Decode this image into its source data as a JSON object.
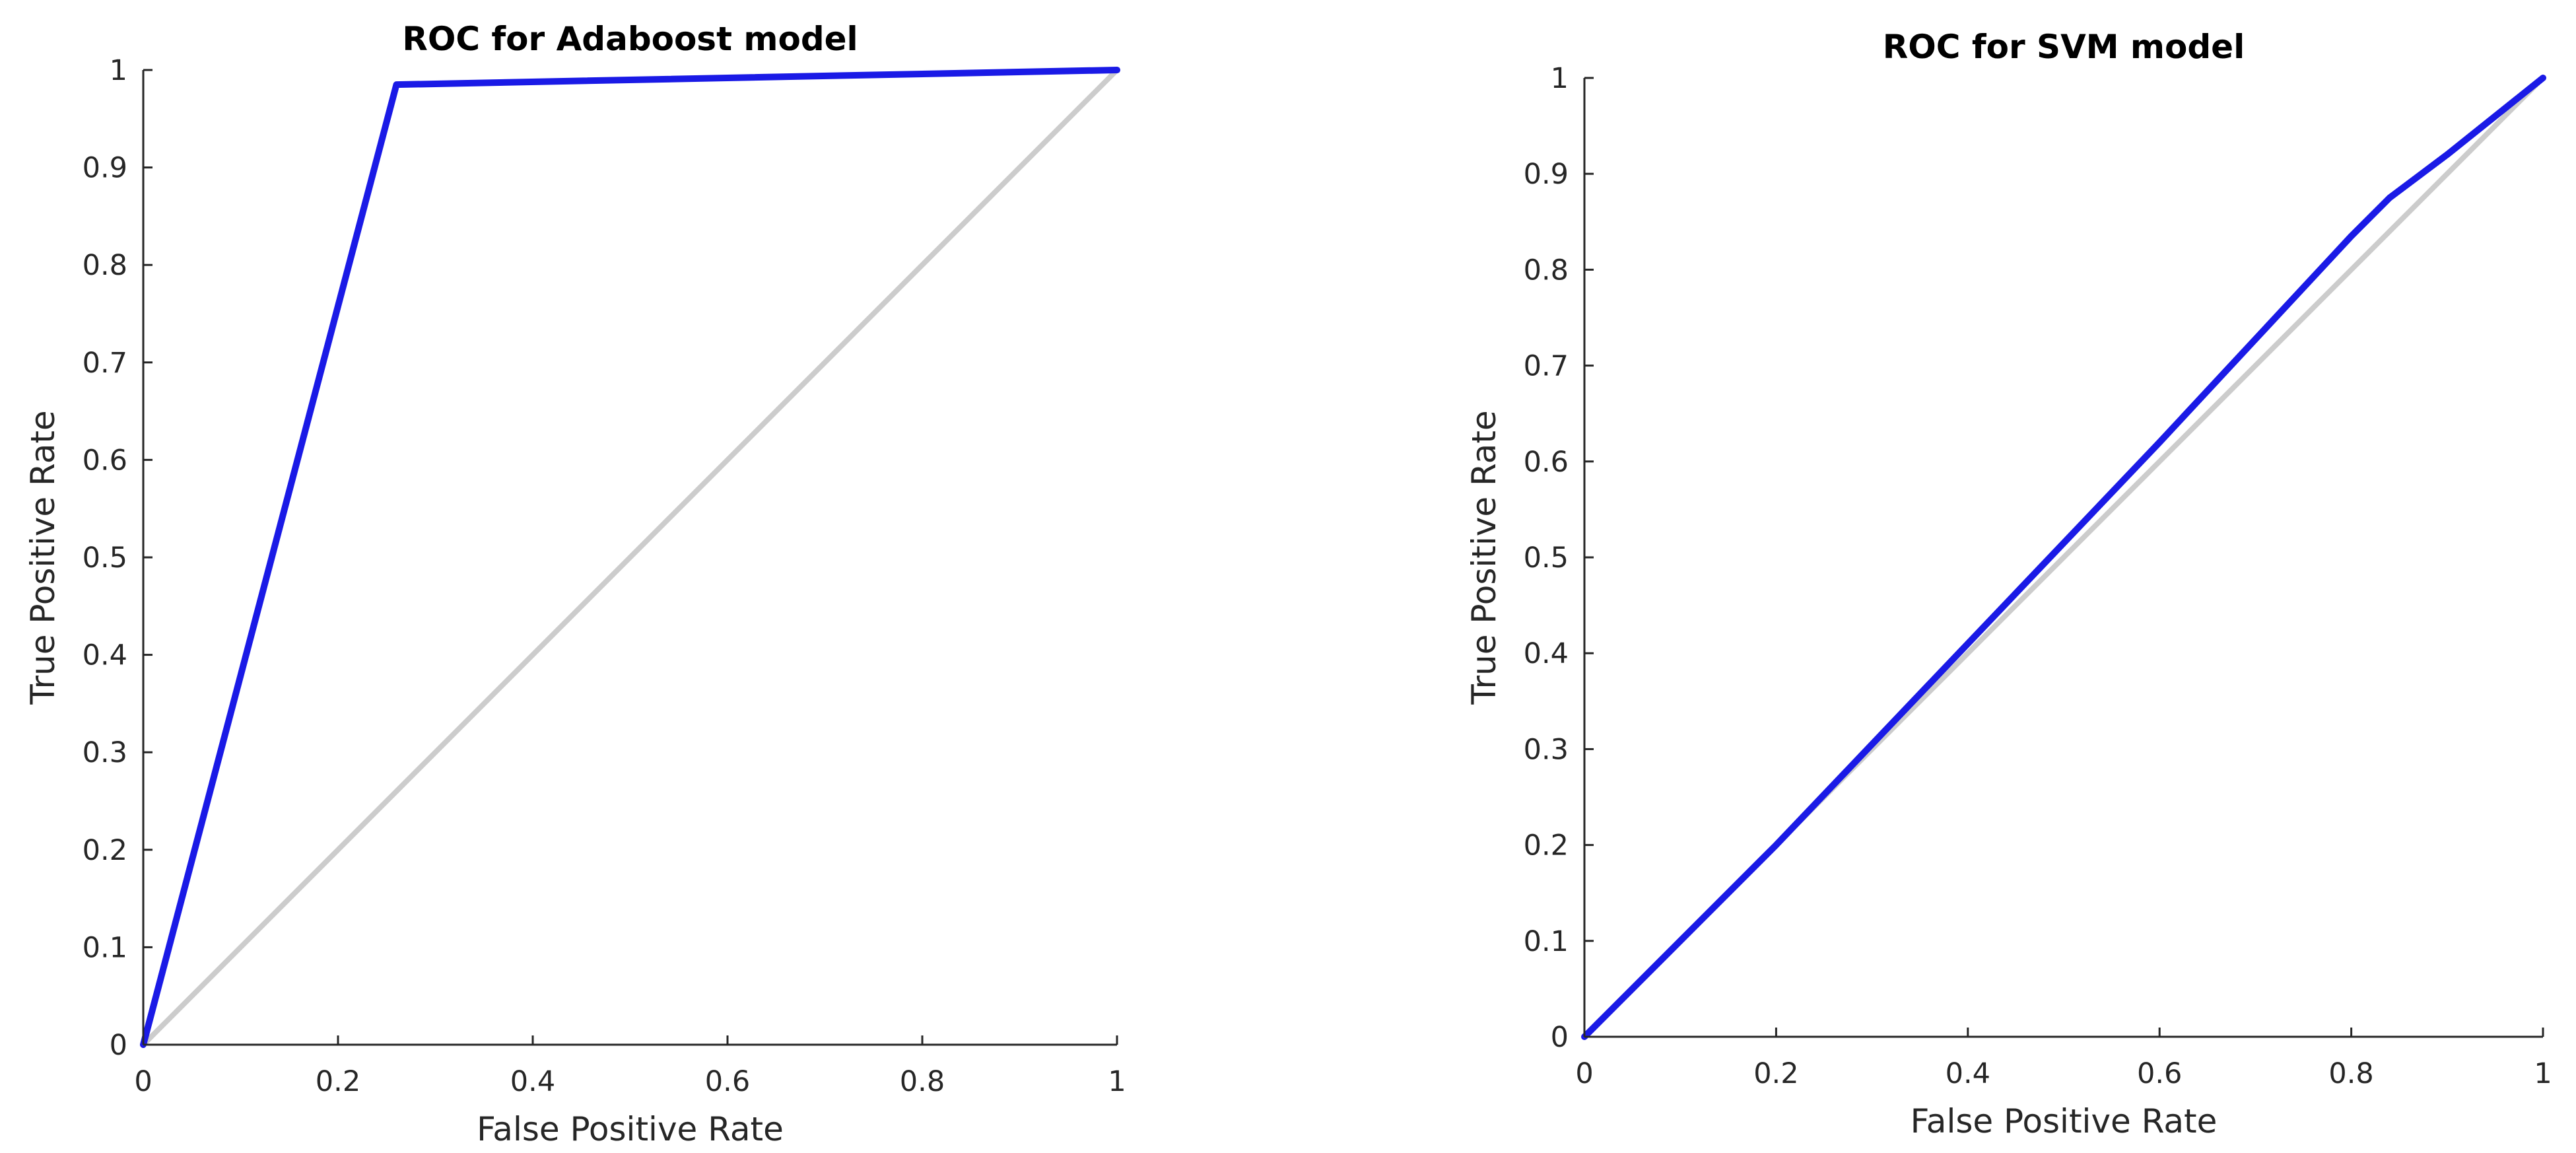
{
  "chart_data": [
    {
      "type": "line",
      "title": "ROC for Adaboost model",
      "xlabel": "False Positive Rate",
      "ylabel": "True Positive Rate",
      "xlim": [
        0,
        1
      ],
      "ylim": [
        0,
        1
      ],
      "x_ticks": [
        0,
        0.2,
        0.4,
        0.6,
        0.8,
        1
      ],
      "x_tick_labels": [
        "0",
        "0.2",
        "0.4",
        "0.6",
        "0.8",
        "1"
      ],
      "y_ticks": [
        0,
        0.1,
        0.2,
        0.3,
        0.4,
        0.5,
        0.6,
        0.7,
        0.8,
        0.9,
        1
      ],
      "y_tick_labels": [
        "0",
        "0.1",
        "0.2",
        "0.3",
        "0.4",
        "0.5",
        "0.6",
        "0.7",
        "0.8",
        "0.9",
        "1"
      ],
      "grid": false,
      "series": [
        {
          "color": "#1a1ae6",
          "x": [
            0,
            0.26,
            1
          ],
          "y": [
            0,
            0.985,
            1
          ]
        },
        {
          "color": "#cccccc",
          "x": [
            0,
            1
          ],
          "y": [
            0,
            1
          ]
        }
      ]
    },
    {
      "type": "line",
      "title": "ROC for SVM model",
      "xlabel": "False Positive Rate",
      "ylabel": "True Positive Rate",
      "xlim": [
        0,
        1
      ],
      "ylim": [
        0,
        1
      ],
      "x_ticks": [
        0,
        0.2,
        0.4,
        0.6,
        0.8,
        1
      ],
      "x_tick_labels": [
        "0",
        "0.2",
        "0.4",
        "0.6",
        "0.8",
        "1"
      ],
      "y_ticks": [
        0,
        0.1,
        0.2,
        0.3,
        0.4,
        0.5,
        0.6,
        0.7,
        0.8,
        0.9,
        1
      ],
      "y_tick_labels": [
        "0",
        "0.1",
        "0.2",
        "0.3",
        "0.4",
        "0.5",
        "0.6",
        "0.7",
        "0.8",
        "0.9",
        "1"
      ],
      "grid": false,
      "series": [
        {
          "color": "#1a1ae6",
          "x": [
            0,
            0.2,
            0.4,
            0.6,
            0.8,
            0.84,
            0.9,
            1
          ],
          "y": [
            0,
            0.2,
            0.41,
            0.62,
            0.835,
            0.875,
            0.92,
            1
          ]
        },
        {
          "color": "#cccccc",
          "x": [
            0,
            1
          ],
          "y": [
            0,
            1
          ]
        }
      ]
    }
  ]
}
